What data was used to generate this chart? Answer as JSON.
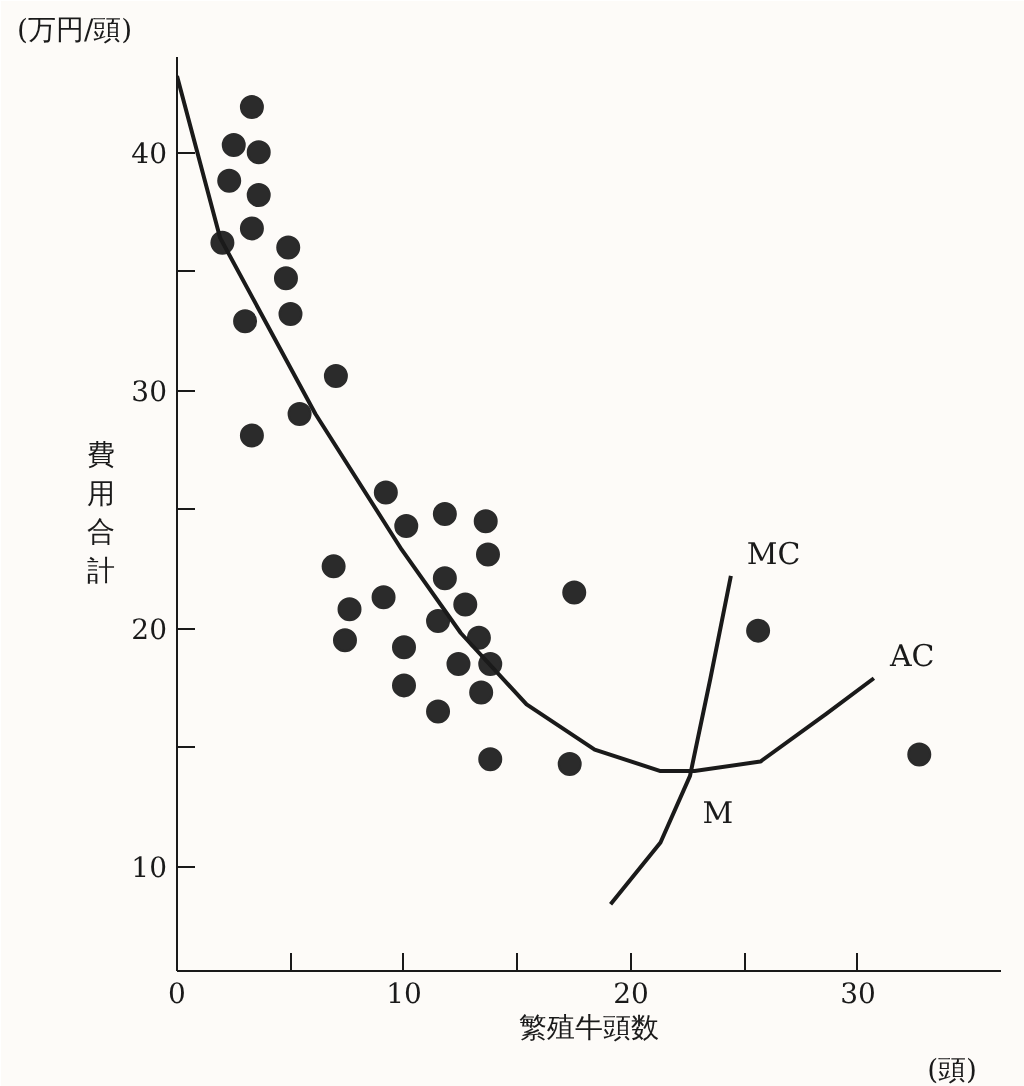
{
  "chart_data": {
    "type": "scatter",
    "xlabel": "繁殖牛頭数",
    "ylabel": "費用合計",
    "xlim": [
      0,
      36.3
    ],
    "ylim": [
      5.6,
      44
    ],
    "xticks": [
      0,
      {
        "value": 5,
        "label": null
      },
      10,
      {
        "value": 15,
        "label": null
      },
      20,
      {
        "value": 25,
        "label": null
      },
      30
    ],
    "yticks": [
      10,
      {
        "value": 15,
        "label": null
      },
      20,
      {
        "value": 25,
        "label": null
      },
      30,
      {
        "value": 35,
        "label": null
      },
      40
    ],
    "grid": false,
    "series": [
      {
        "marker": "circle",
        "color": "#2b2b2b",
        "x": [
          3.3,
          2.5,
          3.6,
          2.3,
          3.6,
          3.3,
          2.0,
          4.9,
          4.8,
          5.0,
          3.0,
          7.0,
          5.4,
          3.3,
          9.2,
          10.1,
          11.8,
          13.6,
          13.7,
          6.9,
          11.8,
          9.1,
          7.6,
          12.7,
          11.5,
          17.5,
          7.4,
          10.0,
          13.3,
          12.4,
          13.8,
          10.0,
          13.4,
          11.5,
          13.8,
          17.3,
          25.6,
          32.7
        ],
        "values": [
          41.9,
          40.3,
          40.0,
          38.8,
          38.2,
          36.8,
          36.2,
          36.0,
          34.7,
          33.2,
          32.9,
          30.6,
          29.0,
          28.1,
          25.7,
          24.3,
          24.8,
          24.5,
          23.1,
          22.6,
          22.1,
          21.3,
          20.8,
          21.0,
          20.3,
          21.5,
          19.5,
          19.2,
          19.6,
          18.5,
          18.5,
          17.6,
          17.3,
          16.5,
          14.5,
          14.3,
          19.9,
          14.7
        ]
      },
      {
        "type": "line",
        "name": "AC",
        "color": "#1a1a1a",
        "x": [
          0,
          1.9,
          6.1,
          9.9,
          12.5,
          15.4,
          18.4,
          21.3,
          22.8,
          25.7,
          28.6,
          30.7
        ],
        "values": [
          43.2,
          36.4,
          29.0,
          23.3,
          19.8,
          16.8,
          14.9,
          14.0,
          14.0,
          14.4,
          16.4,
          17.9
        ]
      },
      {
        "type": "line",
        "name": "MC",
        "color": "#1a1a1a",
        "x": [
          19.1,
          21.3,
          22.6,
          23.5,
          24.4
        ],
        "values": [
          8.4,
          11.0,
          13.8,
          17.9,
          22.2
        ]
      }
    ],
    "annotations": [
      "(万円/頭)",
      "(頭)",
      {
        "text": "M",
        "x": 22.8,
        "y": 14.0
      }
    ]
  }
}
